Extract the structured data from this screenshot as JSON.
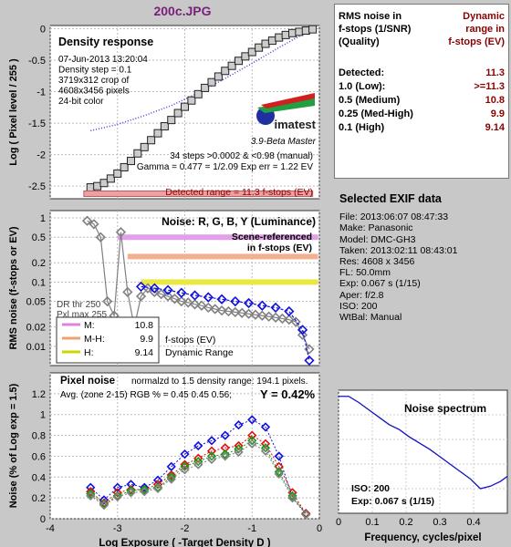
{
  "header": {
    "filename": "200c.JPG"
  },
  "right_panel": {
    "col1_header": [
      "RMS noise in",
      "f-stops (1/SNR)",
      "(Quality)"
    ],
    "col2_header": [
      "Dynamic",
      "range in",
      "f-stops (EV)"
    ],
    "rows": [
      {
        "label": "Detected:",
        "value": "11.3"
      },
      {
        "label": "1.0   (Low):",
        "value": ">=11.3"
      },
      {
        "label": "0.5   (Medium)",
        "value": "10.8"
      },
      {
        "label": "0.25 (Med-High)",
        "value": "9.9"
      },
      {
        "label": "0.1   (High)",
        "value": "9.14"
      }
    ],
    "colors": {
      "value": "#8b0000"
    }
  },
  "exif": {
    "title": "Selected EXIF data",
    "lines": [
      "File:  2013:06:07 08:47:33",
      "Make: Panasonic",
      "Model: DMC-GH3",
      "Taken: 2013:02:11 08:43:01",
      "Res:   4608 x 3456",
      "FL:  50.0mm",
      "Exp:  0.067 s  (1/15)",
      "Aper:  f/2.8",
      "ISO:  200",
      "WtBal: Manual"
    ]
  },
  "chart_data": [
    {
      "type": "line",
      "title": "Density response",
      "ylabel": "Log ( Pixel level / 255 )",
      "ylim": [
        -2.7,
        0.05
      ],
      "yticks": [
        0,
        -0.5,
        -1,
        -1.5,
        -2,
        -2.5
      ],
      "ytick_labels": [
        "0",
        "-0.5",
        "-1",
        "-1.5",
        "-2",
        "-2.5"
      ],
      "xlim": [
        -4,
        0
      ],
      "info_lines": [
        "07-Jun-2013 13:20:04",
        "Density step = 0.1",
        "3719x312 crop of",
        "4608x3456 pixels",
        "24-bit color"
      ],
      "steps_text": "34 steps >0.0002 & <0.98 (manual)",
      "gamma_text": "Gamma = 0.477 = 1/2.09  Exp err = 1.22 EV",
      "detected_text": "Detected range = 11.3 f-stops (EV)",
      "logo_text": "imatest",
      "logo_sub": "3.9-Beta  Master",
      "series": [
        {
          "name": "density",
          "x": [
            -3.4,
            -3.3,
            -3.2,
            -3.1,
            -3.0,
            -2.9,
            -2.8,
            -2.7,
            -2.6,
            -2.5,
            -2.4,
            -2.3,
            -2.2,
            -2.1,
            -2.0,
            -1.9,
            -1.8,
            -1.7,
            -1.6,
            -1.5,
            -1.4,
            -1.3,
            -1.2,
            -1.1,
            -1.0,
            -0.9,
            -0.8,
            -0.7,
            -0.6,
            -0.5,
            -0.4,
            -0.3,
            -0.2,
            -0.1
          ],
          "values": [
            -2.52,
            -2.5,
            -2.45,
            -2.38,
            -2.3,
            -2.2,
            -2.1,
            -1.98,
            -1.88,
            -1.77,
            -1.66,
            -1.55,
            -1.45,
            -1.34,
            -1.24,
            -1.14,
            -1.04,
            -0.94,
            -0.85,
            -0.76,
            -0.67,
            -0.59,
            -0.51,
            -0.44,
            -0.37,
            -0.3,
            -0.24,
            -0.19,
            -0.14,
            -0.1,
            -0.07,
            -0.05,
            -0.03,
            -0.01
          ]
        },
        {
          "name": "fit",
          "x": [
            -3.4,
            -3.0,
            -2.6,
            -2.2,
            -1.8,
            -1.4,
            -1.0,
            -0.6,
            -0.2
          ],
          "values": [
            -1.62,
            -1.52,
            -1.38,
            -1.22,
            -1.02,
            -0.79,
            -0.55,
            -0.3,
            -0.06
          ]
        }
      ]
    },
    {
      "type": "line",
      "title": "Noise: R, G, B, Y (Luminance)",
      "ylabel": "RMS noise (f-stops or EV)",
      "yscale": "log",
      "ylim": [
        0.005,
        1.3
      ],
      "yticks": [
        1,
        0.5,
        0.2,
        0.1,
        0.05,
        0.02,
        0.01
      ],
      "ytick_labels": [
        "1",
        "0.5",
        "0.2",
        "0.1",
        "0.05",
        "0.02",
        "0.01"
      ],
      "xlim": [
        -4,
        0
      ],
      "annotation": [
        "Scene-referenced",
        "in f-stops (EV)"
      ],
      "dr_text": [
        "DR thr 250",
        "Pxl max 255"
      ],
      "legend_entries": [
        {
          "label": "M:",
          "value": "10.8",
          "color": "#e080e0"
        },
        {
          "label": "M-H:",
          "value": "9.9",
          "color": "#f0a070"
        },
        {
          "label": "H:",
          "value": "9.14",
          "color": "#c8d800"
        }
      ],
      "legend_notes": [
        "f-stops (EV)",
        "Dynamic Range"
      ],
      "thresholds": [
        {
          "value": 0.5,
          "color": "#e3a0ea",
          "x0": -3.0
        },
        {
          "value": 0.25,
          "color": "#f2b090",
          "x0": -2.85
        },
        {
          "value": 0.1,
          "color": "#e8e840",
          "x0": -2.65
        }
      ],
      "series": [
        {
          "name": "Y",
          "x": [
            -3.45,
            -3.35,
            -3.25,
            -3.15,
            -3.05,
            -2.95,
            -2.85,
            -2.75,
            -2.65,
            -2.55,
            -2.45,
            -2.35,
            -2.25,
            -2.15,
            -2.05,
            -1.95,
            -1.85,
            -1.75,
            -1.65,
            -1.55,
            -1.45,
            -1.35,
            -1.25,
            -1.15,
            -1.05,
            -0.95,
            -0.85,
            -0.75,
            -0.65,
            -0.55,
            -0.45,
            -0.35,
            -0.25,
            -0.15
          ],
          "values": [
            0.9,
            0.8,
            0.5,
            0.05,
            0.03,
            0.6,
            0.07,
            0.02,
            0.06,
            0.08,
            0.07,
            0.065,
            0.06,
            0.055,
            0.05,
            0.048,
            0.045,
            0.043,
            0.04,
            0.038,
            0.036,
            0.035,
            0.034,
            0.033,
            0.032,
            0.031,
            0.03,
            0.029,
            0.028,
            0.027,
            0.026,
            0.024,
            0.015,
            0.009
          ]
        },
        {
          "name": "B",
          "x": [
            -2.65,
            -2.45,
            -2.25,
            -2.05,
            -1.85,
            -1.65,
            -1.45,
            -1.25,
            -1.05,
            -0.85,
            -0.65,
            -0.45,
            -0.25,
            -0.15
          ],
          "values": [
            0.085,
            0.08,
            0.075,
            0.068,
            0.062,
            0.058,
            0.054,
            0.05,
            0.047,
            0.043,
            0.04,
            0.035,
            0.018,
            0.006
          ]
        }
      ]
    },
    {
      "type": "line",
      "title": "Pixel noise",
      "subtitle": "normalzd to 1.5 density range: 194.1 pixels.",
      "stats_text": "Avg. (zone 2-15) RGB % = 0.45  0.45  0.56;",
      "y_text": "Y = 0.42%",
      "ylabel": "Noise (% of Log exp = 1.5)",
      "xlabel": "Log Exposure ( -Target Density D )",
      "ylim": [
        0,
        1.4
      ],
      "yticks": [
        0,
        0.2,
        0.4,
        0.6,
        0.8,
        1,
        1.2
      ],
      "ytick_labels": [
        "0",
        "0.2",
        "0.4",
        "0.6",
        "0.8",
        "1",
        "1.2"
      ],
      "xlim": [
        -4,
        0
      ],
      "xticks": [
        -4,
        -3,
        -2,
        -1,
        0
      ],
      "xtick_labels": [
        "-4",
        "-3",
        "-2",
        "-1",
        "0"
      ],
      "series": [
        {
          "name": "B",
          "x": [
            -3.4,
            -3.2,
            -3.0,
            -2.8,
            -2.6,
            -2.4,
            -2.2,
            -2.0,
            -1.8,
            -1.6,
            -1.4,
            -1.2,
            -1.0,
            -0.8,
            -0.6,
            -0.4,
            -0.2
          ],
          "values": [
            0.3,
            0.18,
            0.3,
            0.33,
            0.3,
            0.37,
            0.5,
            0.62,
            0.7,
            0.75,
            0.8,
            0.9,
            0.95,
            0.88,
            0.6,
            0.2,
            0.05
          ]
        },
        {
          "name": "R",
          "x": [
            -3.4,
            -3.2,
            -3.0,
            -2.8,
            -2.6,
            -2.4,
            -2.2,
            -2.0,
            -1.8,
            -1.6,
            -1.4,
            -1.2,
            -1.0,
            -0.8,
            -0.6,
            -0.4,
            -0.2
          ],
          "values": [
            0.26,
            0.15,
            0.25,
            0.28,
            0.28,
            0.33,
            0.42,
            0.52,
            0.58,
            0.65,
            0.68,
            0.7,
            0.8,
            0.72,
            0.5,
            0.25,
            0.05
          ]
        },
        {
          "name": "G",
          "x": [
            -3.4,
            -3.2,
            -3.0,
            -2.8,
            -2.6,
            -2.4,
            -2.2,
            -2.0,
            -1.8,
            -1.6,
            -1.4,
            -1.2,
            -1.0,
            -0.8,
            -0.6,
            -0.4,
            -0.2
          ],
          "values": [
            0.24,
            0.14,
            0.22,
            0.27,
            0.28,
            0.3,
            0.4,
            0.5,
            0.55,
            0.6,
            0.62,
            0.67,
            0.75,
            0.68,
            0.45,
            0.22,
            0.04
          ]
        },
        {
          "name": "Y",
          "x": [
            -3.4,
            -3.2,
            -3.0,
            -2.8,
            -2.6,
            -2.4,
            -2.2,
            -2.0,
            -1.8,
            -1.6,
            -1.4,
            -1.2,
            -1.0,
            -0.8,
            -0.6,
            -0.4,
            -0.2
          ],
          "values": [
            0.22,
            0.13,
            0.21,
            0.25,
            0.26,
            0.29,
            0.38,
            0.47,
            0.52,
            0.57,
            0.6,
            0.64,
            0.72,
            0.65,
            0.43,
            0.2,
            0.04
          ]
        }
      ]
    },
    {
      "type": "line",
      "title": "Noise spectrum",
      "xlabel": "Frequency, cycles/pixel",
      "ylabel": "",
      "xlim": [
        0,
        0.5
      ],
      "xticks": [
        0,
        0.1,
        0.2,
        0.3,
        0.4
      ],
      "xtick_labels": [
        "0",
        "0.1",
        "0.2",
        "0.3",
        "0.4"
      ],
      "ylim": [
        0,
        1
      ],
      "iso_text": "ISO:  200",
      "exp_text": "Exp:  0.067 s  (1/15)",
      "series": [
        {
          "name": "spectrum",
          "x": [
            0,
            0.03,
            0.06,
            0.09,
            0.12,
            0.15,
            0.18,
            0.21,
            0.24,
            0.27,
            0.3,
            0.33,
            0.36,
            0.39,
            0.42,
            0.45,
            0.48,
            0.5
          ],
          "values": [
            0.95,
            0.95,
            0.9,
            0.84,
            0.78,
            0.72,
            0.68,
            0.62,
            0.57,
            0.52,
            0.46,
            0.4,
            0.34,
            0.28,
            0.2,
            0.22,
            0.26,
            0.3
          ]
        }
      ]
    }
  ]
}
